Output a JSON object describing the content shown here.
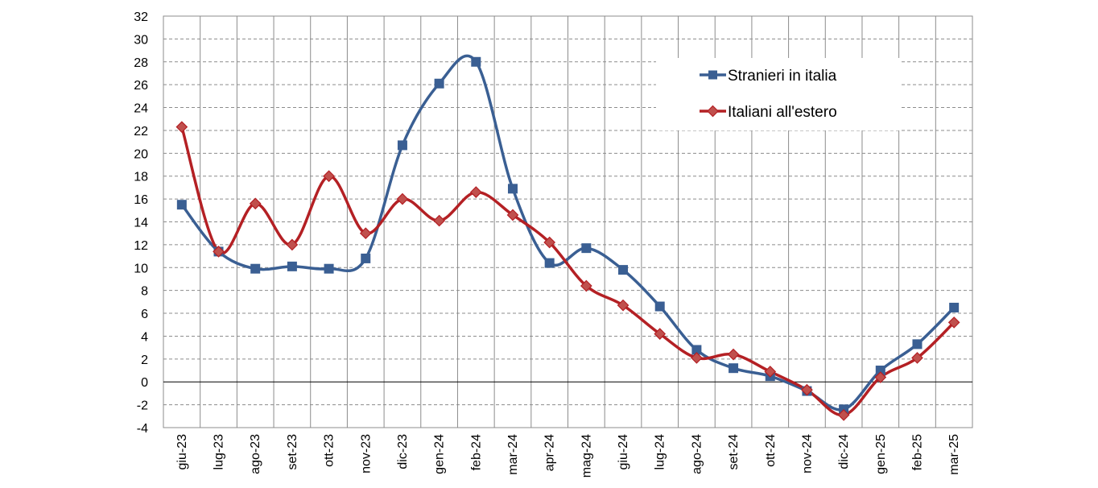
{
  "chart_data": {
    "type": "line",
    "categories": [
      "giu-23",
      "lug-23",
      "ago-23",
      "set-23",
      "ott-23",
      "nov-23",
      "dic-23",
      "gen-24",
      "feb-24",
      "mar-24",
      "apr-24",
      "mag-24",
      "giu-24",
      "lug-24",
      "ago-24",
      "set-24",
      "ott-24",
      "nov-24",
      "dic-24",
      "gen-25",
      "feb-25",
      "mar-25"
    ],
    "ylim": [
      -4,
      32
    ],
    "yticks": [
      -4,
      -2,
      0,
      2,
      4,
      6,
      8,
      10,
      12,
      14,
      16,
      18,
      20,
      22,
      24,
      26,
      28,
      30,
      32
    ],
    "grid": true,
    "legend_position": "top-right",
    "series": [
      {
        "name": "Stranieri in italia",
        "color": "#3A5F93",
        "marker": "square",
        "values": [
          15.5,
          11.4,
          9.9,
          10.1,
          9.9,
          10.8,
          20.7,
          26.1,
          28.0,
          16.9,
          10.4,
          11.7,
          9.8,
          6.6,
          2.8,
          1.2,
          0.5,
          -0.8,
          -2.4,
          1.0,
          3.3,
          6.5
        ]
      },
      {
        "name": "Italiani all'estero",
        "color": "#B42024",
        "marker_fill": "#C0504D",
        "marker": "diamond",
        "values": [
          22.3,
          11.4,
          15.6,
          12.0,
          18.0,
          13.0,
          16.0,
          14.1,
          16.6,
          14.6,
          12.2,
          8.4,
          6.7,
          4.2,
          2.1,
          2.4,
          0.9,
          -0.7,
          -2.9,
          0.4,
          2.1,
          5.2
        ]
      }
    ]
  }
}
